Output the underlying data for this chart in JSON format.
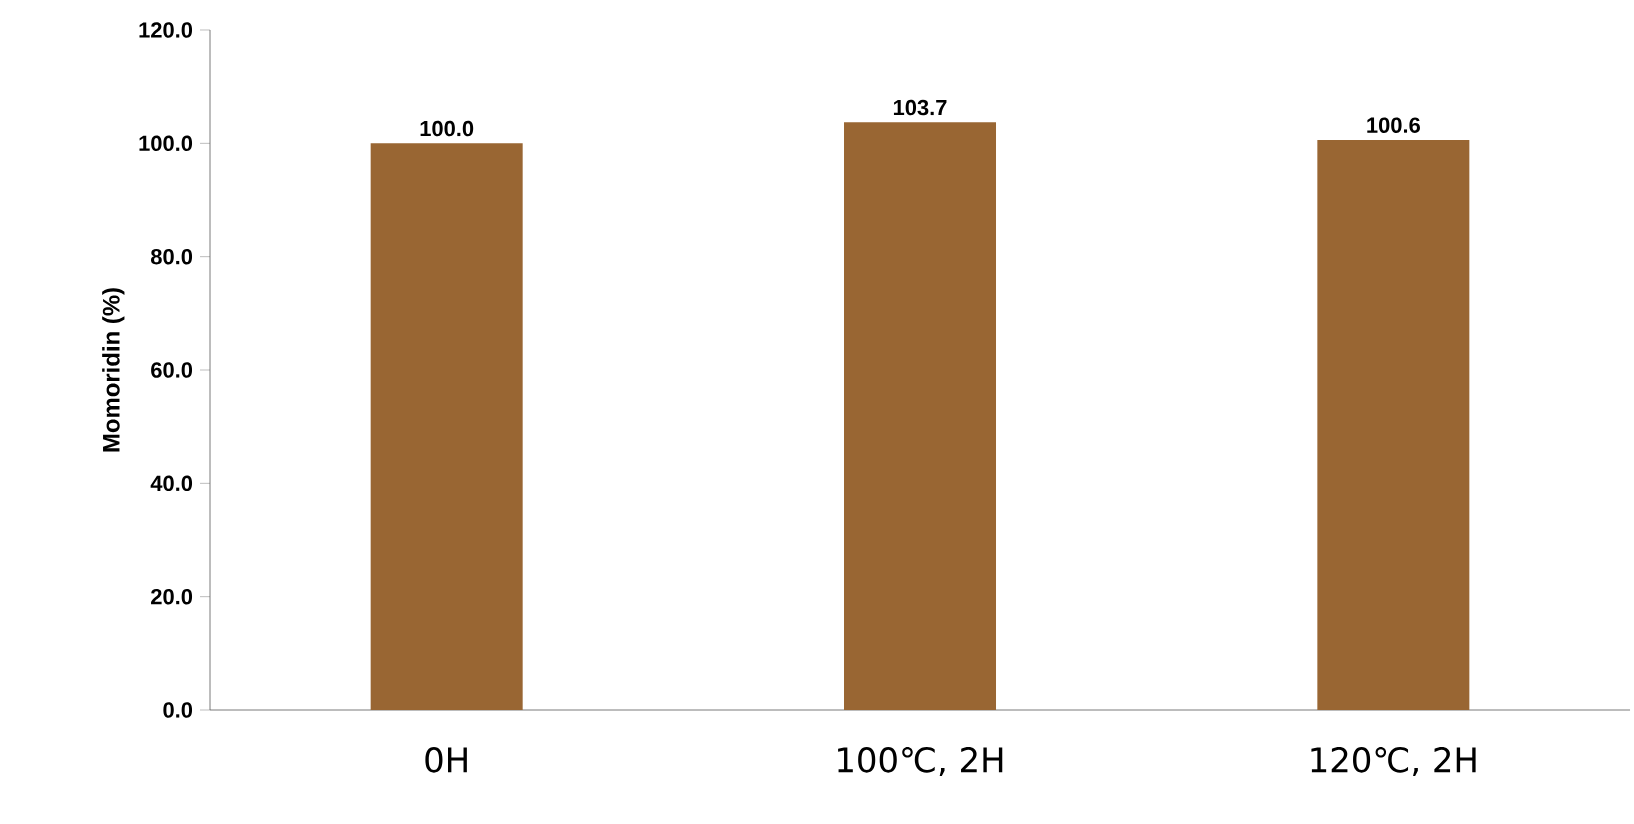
{
  "chart_data": {
    "type": "bar",
    "ylabel": "Momoridin (%)",
    "categories": [
      "0H",
      "100℃, 2H",
      "120℃, 2H"
    ],
    "values": [
      100.0,
      103.7,
      100.6
    ],
    "color": "#996633",
    "ylim": [
      0,
      120
    ],
    "yticks": [
      {
        "value": 0,
        "label": "0.0"
      },
      {
        "value": 20,
        "label": "20.0"
      },
      {
        "value": 40,
        "label": "40.0"
      },
      {
        "value": 60,
        "label": "60.0"
      },
      {
        "value": 80,
        "label": "80.0"
      },
      {
        "value": 100,
        "label": "100.0"
      },
      {
        "value": 120,
        "label": "120.0"
      }
    ],
    "value_labels": [
      "100.0",
      "103.7",
      "100.6"
    ],
    "grid": false
  }
}
